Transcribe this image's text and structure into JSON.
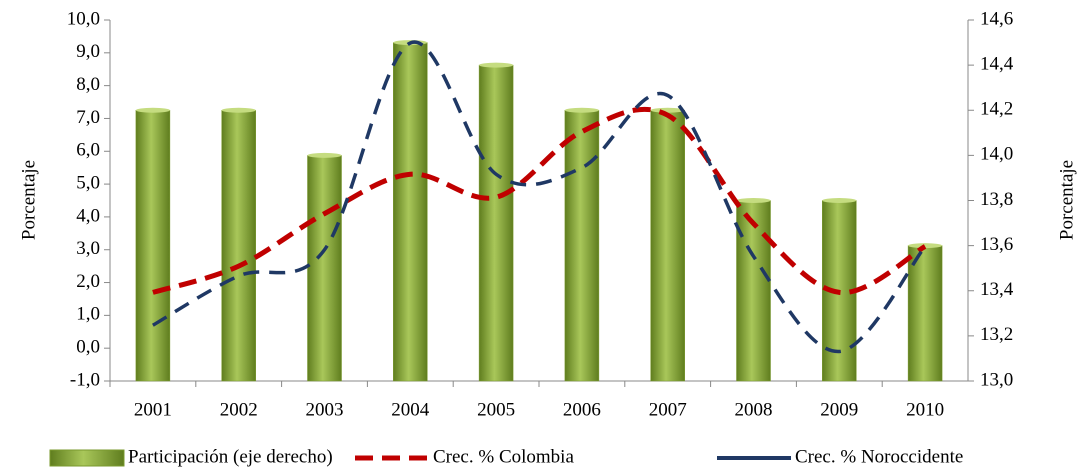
{
  "chart_data": {
    "type": "bar-line",
    "categories": [
      "2001",
      "2002",
      "2003",
      "2004",
      "2005",
      "2006",
      "2007",
      "2008",
      "2009",
      "2010"
    ],
    "ylabel": "Porcentaje",
    "y2label": "Porcentaje",
    "ylim": [
      -1.0,
      10.0
    ],
    "yticks": [
      {
        "value": -1.0,
        "label": "-1,0"
      },
      {
        "value": 0.0,
        "label": "0,0"
      },
      {
        "value": 1.0,
        "label": "1,0"
      },
      {
        "value": 2.0,
        "label": "2,0"
      },
      {
        "value": 3.0,
        "label": "3,0"
      },
      {
        "value": 4.0,
        "label": "4,0"
      },
      {
        "value": 5.0,
        "label": "5,0"
      },
      {
        "value": 6.0,
        "label": "6,0"
      },
      {
        "value": 7.0,
        "label": "7,0"
      },
      {
        "value": 8.0,
        "label": "8,0"
      },
      {
        "value": 9.0,
        "label": "9,0"
      },
      {
        "value": 10.0,
        "label": "10,0"
      }
    ],
    "y2lim": [
      13.0,
      14.6
    ],
    "y2ticks": [
      {
        "value": 13.0,
        "label": "13,0"
      },
      {
        "value": 13.2,
        "label": "13,2"
      },
      {
        "value": 13.4,
        "label": "13,4"
      },
      {
        "value": 13.6,
        "label": "13,6"
      },
      {
        "value": 13.8,
        "label": "13,8"
      },
      {
        "value": 14.0,
        "label": "14,0"
      },
      {
        "value": 14.2,
        "label": "14,2"
      },
      {
        "value": 14.4,
        "label": "14,4"
      },
      {
        "value": 14.6,
        "label": "14,6"
      }
    ],
    "legend": "bottom",
    "series": [
      {
        "name": "Participación (eje derecho)",
        "type": "bar",
        "axis": "y2",
        "color": "#7a9a2e",
        "values": [
          14.2,
          14.2,
          14.0,
          14.5,
          14.4,
          14.2,
          14.2,
          13.8,
          13.8,
          13.6
        ]
      },
      {
        "name": "Crec. % Colombia",
        "type": "line",
        "axis": "y",
        "color": "#c00000",
        "values": [
          1.7,
          2.5,
          4.1,
          5.3,
          4.6,
          6.6,
          7.1,
          3.8,
          1.7,
          3.1
        ]
      },
      {
        "name": "Crec. % Noroccidente",
        "type": "line",
        "axis": "y",
        "color": "#1f3864",
        "values": [
          0.7,
          2.2,
          3.0,
          9.3,
          5.3,
          5.5,
          7.7,
          2.8,
          -0.1,
          3.1
        ]
      }
    ]
  }
}
